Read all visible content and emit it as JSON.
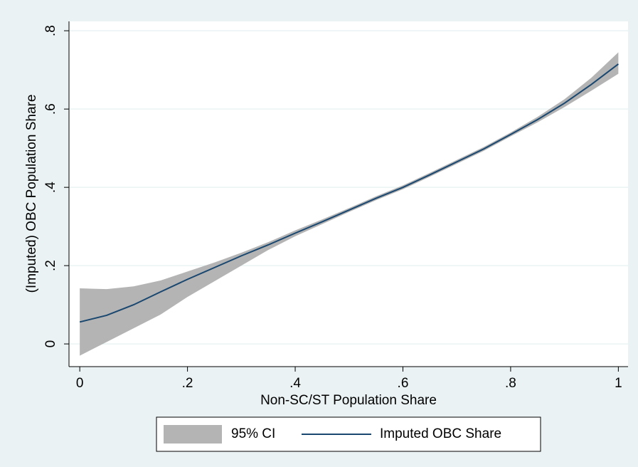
{
  "chart_data": {
    "type": "line",
    "x_label": "Non-SC/ST Population Share",
    "y_label": "(Imputed) OBC Population Share",
    "x": [
      0,
      0.05,
      0.1,
      0.15,
      0.2,
      0.25,
      0.3,
      0.35,
      0.4,
      0.45,
      0.5,
      0.55,
      0.6,
      0.65,
      0.7,
      0.75,
      0.8,
      0.85,
      0.9,
      0.95,
      1
    ],
    "series": [
      {
        "name": "95% CI",
        "color": "#b4b4b4",
        "lower": [
          -0.03,
          0.005,
          0.04,
          0.075,
          0.12,
          0.16,
          0.2,
          0.24,
          0.275,
          0.306,
          0.337,
          0.367,
          0.395,
          0.427,
          0.46,
          0.493,
          0.53,
          0.566,
          0.605,
          0.647,
          0.69
        ],
        "upper": [
          0.142,
          0.14,
          0.147,
          0.162,
          0.185,
          0.208,
          0.233,
          0.26,
          0.29,
          0.318,
          0.347,
          0.377,
          0.405,
          0.437,
          0.47,
          0.503,
          0.54,
          0.58,
          0.625,
          0.68,
          0.745
        ]
      },
      {
        "name": "Imputed OBC Share",
        "color": "#1a476f",
        "values": [
          0.056,
          0.073,
          0.1,
          0.133,
          0.165,
          0.195,
          0.225,
          0.253,
          0.283,
          0.312,
          0.342,
          0.372,
          0.4,
          0.432,
          0.465,
          0.498,
          0.535,
          0.573,
          0.615,
          0.663,
          0.715
        ]
      }
    ],
    "xlim": [
      -0.02,
      1.018
    ],
    "ylim": [
      -0.058,
      0.824
    ],
    "xticks": [
      0,
      {
        "value": 0.2,
        "label": ".2"
      },
      {
        "value": 0.4,
        "label": ".4"
      },
      {
        "value": 0.6,
        "label": ".6"
      },
      {
        "value": 0.8,
        "label": ".8"
      },
      1
    ],
    "yticks": [
      0,
      {
        "value": 0.2,
        "label": ".2"
      },
      {
        "value": 0.4,
        "label": ".4"
      },
      {
        "value": 0.6,
        "label": ".6"
      },
      {
        "value": 0.8,
        "label": ".8"
      }
    ],
    "grid": true
  }
}
